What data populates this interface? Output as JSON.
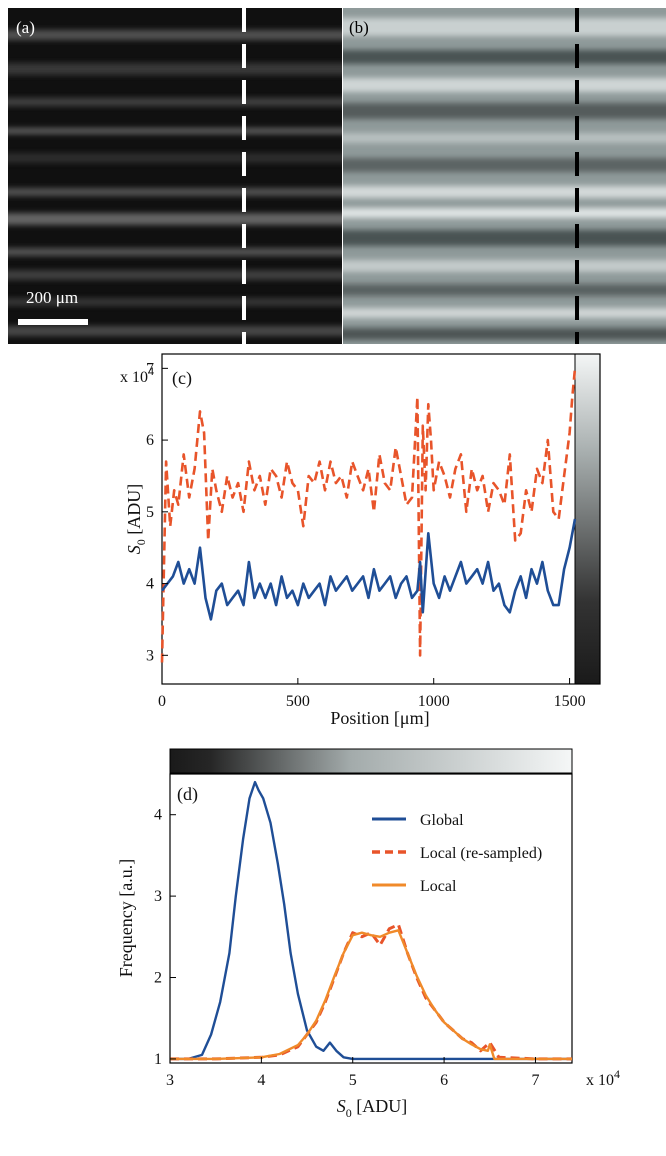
{
  "figure": {
    "panel_a": {
      "label": "(a)",
      "scale_bar_text": "200 μm"
    },
    "panel_b": {
      "label": "(b)"
    }
  },
  "colors": {
    "global": "#1f4e96",
    "local_resampled": "#e8542a",
    "local": "#f08a2a"
  },
  "chart_data": [
    {
      "type": "line",
      "panel_label": "(c)",
      "xlabel": "Position [μm]",
      "ylabel": "S0 [ADU]",
      "ylabel_main": "S",
      "ylabel_sub": "0",
      "ylabel_unit": " [ADU]",
      "y_multiplier": "x 10",
      "y_multiplier_exp": "4",
      "xlim": [
        0,
        1520
      ],
      "ylim": [
        2.6,
        7.2
      ],
      "xticks": [
        "0",
        "500",
        "1000",
        "1500"
      ],
      "yticks": [
        "3",
        "4",
        "5",
        "6",
        "7"
      ],
      "grid": false,
      "colorbar": "vertical grayscale, right side",
      "series": [
        {
          "style": "dashed",
          "x": [
            0,
            15,
            30,
            45,
            60,
            80,
            100,
            120,
            140,
            155,
            170,
            185,
            200,
            220,
            240,
            260,
            280,
            300,
            320,
            340,
            360,
            380,
            400,
            420,
            440,
            460,
            480,
            500,
            520,
            540,
            560,
            580,
            600,
            620,
            640,
            660,
            680,
            700,
            720,
            740,
            760,
            780,
            800,
            820,
            840,
            860,
            880,
            900,
            920,
            940,
            950,
            960,
            970,
            980,
            990,
            1000,
            1020,
            1040,
            1060,
            1080,
            1100,
            1120,
            1140,
            1160,
            1180,
            1200,
            1220,
            1240,
            1260,
            1280,
            1300,
            1320,
            1340,
            1360,
            1380,
            1400,
            1420,
            1440,
            1460,
            1480,
            1500,
            1510,
            1520
          ],
          "y": [
            2.9,
            5.7,
            4.8,
            5.3,
            5.1,
            5.8,
            5.2,
            5.6,
            6.4,
            6.1,
            4.6,
            5.6,
            5.3,
            5.0,
            5.5,
            5.2,
            5.4,
            5.0,
            5.7,
            5.3,
            5.5,
            5.1,
            5.6,
            5.5,
            5.2,
            5.7,
            5.4,
            5.3,
            4.8,
            5.5,
            5.4,
            5.7,
            5.3,
            5.7,
            5.4,
            5.5,
            5.2,
            5.7,
            5.5,
            5.3,
            5.6,
            5.0,
            5.8,
            5.4,
            5.3,
            5.9,
            5.5,
            5.1,
            5.2,
            6.6,
            3.0,
            6.2,
            5.3,
            6.5,
            6.0,
            5.3,
            5.7,
            5.5,
            5.2,
            5.6,
            5.8,
            5.0,
            5.6,
            5.3,
            5.5,
            5.0,
            5.4,
            5.3,
            5.1,
            5.8,
            4.6,
            4.7,
            5.3,
            5.0,
            5.6,
            5.4,
            6.0,
            5.0,
            4.9,
            5.5,
            6.1,
            6.6,
            7.0
          ]
        },
        {
          "style": "solid",
          "x": [
            0,
            20,
            40,
            60,
            80,
            100,
            120,
            140,
            160,
            180,
            200,
            220,
            240,
            260,
            280,
            300,
            320,
            340,
            360,
            380,
            400,
            420,
            440,
            460,
            480,
            500,
            520,
            540,
            560,
            580,
            600,
            620,
            640,
            660,
            680,
            700,
            720,
            740,
            760,
            780,
            800,
            820,
            840,
            860,
            880,
            900,
            920,
            940,
            950,
            960,
            980,
            1000,
            1020,
            1040,
            1060,
            1080,
            1100,
            1120,
            1140,
            1160,
            1180,
            1200,
            1220,
            1240,
            1260,
            1280,
            1300,
            1320,
            1340,
            1360,
            1380,
            1400,
            1420,
            1440,
            1460,
            1480,
            1500,
            1520
          ],
          "y": [
            3.9,
            4.0,
            4.1,
            4.3,
            4.0,
            4.2,
            4.0,
            4.5,
            3.8,
            3.5,
            3.9,
            4.0,
            3.7,
            3.8,
            3.9,
            3.7,
            4.3,
            3.8,
            4.0,
            3.8,
            4.0,
            3.7,
            4.1,
            3.8,
            3.9,
            3.7,
            4.0,
            3.8,
            3.9,
            4.0,
            3.7,
            4.1,
            3.9,
            4.0,
            4.1,
            3.9,
            4.0,
            4.1,
            3.8,
            4.2,
            3.9,
            4.0,
            4.1,
            3.8,
            4.0,
            4.1,
            3.8,
            3.9,
            4.3,
            3.6,
            4.7,
            4.0,
            3.8,
            4.1,
            3.9,
            4.1,
            4.3,
            4.0,
            4.1,
            4.2,
            4.0,
            4.3,
            3.9,
            4.0,
            3.7,
            3.6,
            3.9,
            4.1,
            3.8,
            4.2,
            4.0,
            4.3,
            3.9,
            3.7,
            3.7,
            4.2,
            4.5,
            4.9
          ]
        }
      ]
    },
    {
      "type": "line",
      "panel_label": "(d)",
      "xlabel": "S0 [ADU]",
      "xlabel_main": "S",
      "xlabel_sub": "0",
      "xlabel_unit": " [ADU]",
      "ylabel": "Frequency [a.u.]",
      "x_multiplier": "x 10",
      "x_multiplier_exp": "4",
      "xlim": [
        3,
        7.4
      ],
      "ylim": [
        0.95,
        4.5
      ],
      "xticks": [
        "3",
        "4",
        "5",
        "6",
        "7"
      ],
      "yticks": [
        "1",
        "2",
        "3",
        "4"
      ],
      "grid": false,
      "legend_position": "top-right",
      "colorbar": "horizontal grayscale, top",
      "series": [
        {
          "name": "Global",
          "style": "solid",
          "x": [
            3.0,
            3.2,
            3.35,
            3.45,
            3.55,
            3.65,
            3.72,
            3.8,
            3.87,
            3.93,
            3.97,
            4.02,
            4.1,
            4.18,
            4.25,
            4.32,
            4.4,
            4.5,
            4.6,
            4.68,
            4.75,
            4.82,
            4.9,
            5.0,
            5.5,
            6.0,
            7.4
          ],
          "y": [
            1.0,
            1.0,
            1.05,
            1.3,
            1.7,
            2.3,
            3.0,
            3.7,
            4.2,
            4.4,
            4.3,
            4.2,
            3.9,
            3.4,
            2.9,
            2.3,
            1.8,
            1.35,
            1.15,
            1.1,
            1.2,
            1.1,
            1.02,
            1.0,
            1.0,
            1.0,
            1.0
          ]
        },
        {
          "name": "Local (re-sampled)",
          "style": "dashed",
          "x": [
            3.0,
            3.5,
            4.0,
            4.2,
            4.4,
            4.5,
            4.6,
            4.7,
            4.8,
            4.9,
            5.0,
            5.1,
            5.2,
            5.3,
            5.4,
            5.5,
            5.6,
            5.7,
            5.8,
            5.9,
            6.0,
            6.1,
            6.2,
            6.3,
            6.4,
            6.5,
            6.6,
            7.0,
            7.4
          ],
          "y": [
            1.0,
            1.0,
            1.02,
            1.05,
            1.15,
            1.3,
            1.45,
            1.7,
            2.0,
            2.3,
            2.55,
            2.5,
            2.55,
            2.4,
            2.6,
            2.65,
            2.3,
            2.0,
            1.75,
            1.6,
            1.45,
            1.35,
            1.25,
            1.2,
            1.1,
            1.2,
            1.02,
            1.0,
            1.0
          ]
        },
        {
          "name": "Local",
          "style": "solid",
          "x": [
            3.0,
            3.5,
            4.0,
            4.2,
            4.4,
            4.5,
            4.6,
            4.7,
            4.8,
            4.9,
            5.0,
            5.1,
            5.2,
            5.3,
            5.4,
            5.5,
            5.6,
            5.7,
            5.8,
            5.9,
            6.0,
            6.1,
            6.2,
            6.3,
            6.4,
            6.48,
            6.5,
            6.55,
            7.0,
            7.4
          ],
          "y": [
            1.0,
            1.0,
            1.02,
            1.06,
            1.17,
            1.3,
            1.47,
            1.72,
            2.02,
            2.3,
            2.52,
            2.55,
            2.52,
            2.5,
            2.55,
            2.58,
            2.3,
            2.02,
            1.78,
            1.6,
            1.45,
            1.35,
            1.25,
            1.18,
            1.12,
            1.1,
            1.18,
            1.0,
            1.0,
            1.0
          ]
        }
      ]
    }
  ]
}
